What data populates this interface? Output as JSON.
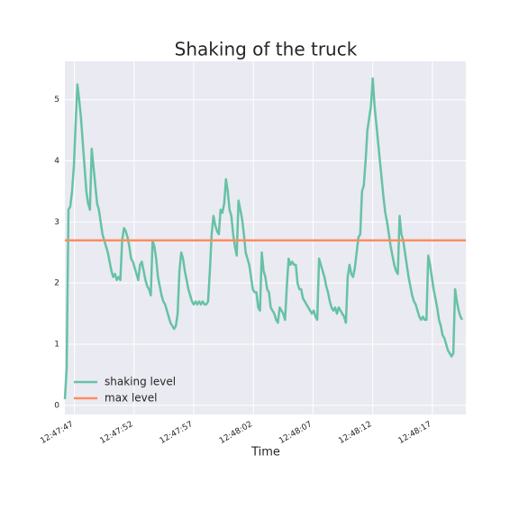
{
  "chart_data": {
    "type": "line",
    "title": "Shaking of the truck",
    "xlabel": "Time",
    "x": [
      "12:47:46.20",
      "12:47:46.35",
      "12:47:46.50",
      "12:47:46.65",
      "12:47:46.80",
      "12:47:46.95",
      "12:47:47.10",
      "12:47:47.25",
      "12:47:47.40",
      "12:47:47.55",
      "12:47:47.70",
      "12:47:47.85",
      "12:47:48.00",
      "12:47:48.15",
      "12:47:48.30",
      "12:47:48.45",
      "12:47:48.60",
      "12:47:48.75",
      "12:47:48.90",
      "12:47:49.05",
      "12:47:49.20",
      "12:47:49.35",
      "12:47:49.50",
      "12:47:49.65",
      "12:47:49.80",
      "12:47:49.95",
      "12:47:50.10",
      "12:47:50.25",
      "12:47:50.40",
      "12:47:50.55",
      "12:47:50.70",
      "12:47:50.85",
      "12:47:51.00",
      "12:47:51.15",
      "12:47:51.30",
      "12:47:51.45",
      "12:47:51.60",
      "12:47:51.75",
      "12:47:51.90",
      "12:47:52.05",
      "12:47:52.20",
      "12:47:52.35",
      "12:47:52.50",
      "12:47:52.65",
      "12:47:52.80",
      "12:47:52.95",
      "12:47:53.10",
      "12:47:53.25",
      "12:47:53.40",
      "12:47:53.55",
      "12:47:53.70",
      "12:47:53.85",
      "12:47:54.00",
      "12:47:54.15",
      "12:47:54.30",
      "12:47:54.45",
      "12:47:54.60",
      "12:47:54.75",
      "12:47:54.90",
      "12:47:55.05",
      "12:47:55.20",
      "12:47:55.35",
      "12:47:55.50",
      "12:47:55.65",
      "12:47:55.80",
      "12:47:55.95",
      "12:47:56.10",
      "12:47:56.25",
      "12:47:56.40",
      "12:47:56.55",
      "12:47:56.70",
      "12:47:56.85",
      "12:47:57.00",
      "12:47:57.15",
      "12:47:57.30",
      "12:47:57.45",
      "12:47:57.60",
      "12:47:57.75",
      "12:47:57.90",
      "12:47:58.05",
      "12:47:58.20",
      "12:47:58.35",
      "12:47:58.50",
      "12:47:58.65",
      "12:47:58.80",
      "12:47:58.95",
      "12:47:59.10",
      "12:47:59.25",
      "12:47:59.40",
      "12:47:59.55",
      "12:47:59.70",
      "12:47:59.85",
      "12:48:00.00",
      "12:48:00.15",
      "12:48:00.30",
      "12:48:00.45",
      "12:48:00.60",
      "12:48:00.75",
      "12:48:00.90",
      "12:48:01.05",
      "12:48:01.20",
      "12:48:01.35",
      "12:48:01.50",
      "12:48:01.65",
      "12:48:01.80",
      "12:48:01.95",
      "12:48:02.10",
      "12:48:02.25",
      "12:48:02.40",
      "12:48:02.55",
      "12:48:02.70",
      "12:48:02.85",
      "12:48:03.00",
      "12:48:03.15",
      "12:48:03.30",
      "12:48:03.45",
      "12:48:03.60",
      "12:48:03.75",
      "12:48:03.90",
      "12:48:04.05",
      "12:48:04.20",
      "12:48:04.35",
      "12:48:04.50",
      "12:48:04.65",
      "12:48:04.80",
      "12:48:04.95",
      "12:48:05.10",
      "12:48:05.25",
      "12:48:05.40",
      "12:48:05.55",
      "12:48:05.70",
      "12:48:05.85",
      "12:48:06.00",
      "12:48:06.15",
      "12:48:06.30",
      "12:48:06.45",
      "12:48:06.60",
      "12:48:06.75",
      "12:48:06.90",
      "12:48:07.05",
      "12:48:07.20",
      "12:48:07.35",
      "12:48:07.50",
      "12:48:07.65",
      "12:48:07.80",
      "12:48:07.95",
      "12:48:08.10",
      "12:48:08.25",
      "12:48:08.40",
      "12:48:08.55",
      "12:48:08.70",
      "12:48:08.85",
      "12:48:09.00",
      "12:48:09.15",
      "12:48:09.30",
      "12:48:09.45",
      "12:48:09.60",
      "12:48:09.75",
      "12:48:09.90",
      "12:48:10.05",
      "12:48:10.20",
      "12:48:10.35",
      "12:48:10.50",
      "12:48:10.65",
      "12:48:10.80",
      "12:48:10.95",
      "12:48:11.10",
      "12:48:11.25",
      "12:48:11.40",
      "12:48:11.55",
      "12:48:11.70",
      "12:48:11.85",
      "12:48:12.00",
      "12:48:12.15",
      "12:48:12.30",
      "12:48:12.45",
      "12:48:12.60",
      "12:48:12.75",
      "12:48:12.90",
      "12:48:13.05",
      "12:48:13.20",
      "12:48:13.35",
      "12:48:13.50",
      "12:48:13.65",
      "12:48:13.80",
      "12:48:13.95",
      "12:48:14.10",
      "12:48:14.25",
      "12:48:14.40",
      "12:48:14.55",
      "12:48:14.70",
      "12:48:14.85",
      "12:48:15.00",
      "12:48:15.15",
      "12:48:15.30",
      "12:48:15.45",
      "12:48:15.60",
      "12:48:15.75",
      "12:48:15.90",
      "12:48:16.05",
      "12:48:16.20",
      "12:48:16.35",
      "12:48:16.50",
      "12:48:16.65",
      "12:48:16.80",
      "12:48:16.95",
      "12:48:17.10",
      "12:48:17.25",
      "12:48:17.40",
      "12:48:17.55",
      "12:48:17.70",
      "12:48:17.85",
      "12:48:18.00",
      "12:48:18.15",
      "12:48:18.30",
      "12:48:18.45",
      "12:48:18.60",
      "12:48:18.75",
      "12:48:18.90",
      "12:48:19.05",
      "12:48:19.20",
      "12:48:19.35",
      "12:48:19.50"
    ],
    "series": [
      {
        "name": "shaking level",
        "color": "#66c2a5",
        "values": [
          0.1,
          0.6,
          3.2,
          3.25,
          3.5,
          3.9,
          4.6,
          5.25,
          5.0,
          4.7,
          4.3,
          3.9,
          3.5,
          3.3,
          3.2,
          4.2,
          3.9,
          3.6,
          3.3,
          3.2,
          3.0,
          2.8,
          2.7,
          2.6,
          2.5,
          2.35,
          2.2,
          2.1,
          2.15,
          2.05,
          2.1,
          2.05,
          2.7,
          2.9,
          2.85,
          2.75,
          2.6,
          2.4,
          2.35,
          2.25,
          2.15,
          2.05,
          2.3,
          2.35,
          2.2,
          2.05,
          1.95,
          1.9,
          1.8,
          2.7,
          2.6,
          2.4,
          2.1,
          1.95,
          1.8,
          1.7,
          1.65,
          1.55,
          1.45,
          1.35,
          1.3,
          1.25,
          1.3,
          1.5,
          2.2,
          2.5,
          2.4,
          2.2,
          2.05,
          1.9,
          1.8,
          1.7,
          1.65,
          1.7,
          1.65,
          1.7,
          1.65,
          1.7,
          1.65,
          1.65,
          1.7,
          2.2,
          2.8,
          3.1,
          2.95,
          2.85,
          2.8,
          3.2,
          3.15,
          3.3,
          3.7,
          3.5,
          3.2,
          3.1,
          2.8,
          2.6,
          2.45,
          3.35,
          3.2,
          3.05,
          2.8,
          2.5,
          2.4,
          2.3,
          2.1,
          1.9,
          1.85,
          1.85,
          1.6,
          1.55,
          2.5,
          2.2,
          2.1,
          1.9,
          1.85,
          1.6,
          1.55,
          1.5,
          1.4,
          1.35,
          1.6,
          1.55,
          1.5,
          1.4,
          1.95,
          2.4,
          2.3,
          2.35,
          2.3,
          2.3,
          2.0,
          1.9,
          1.9,
          1.75,
          1.7,
          1.65,
          1.6,
          1.55,
          1.5,
          1.55,
          1.45,
          1.4,
          2.4,
          2.3,
          2.2,
          2.1,
          1.95,
          1.85,
          1.7,
          1.6,
          1.55,
          1.6,
          1.5,
          1.6,
          1.55,
          1.5,
          1.45,
          1.35,
          2.1,
          2.3,
          2.15,
          2.1,
          2.25,
          2.5,
          2.75,
          2.8,
          3.5,
          3.6,
          4.0,
          4.5,
          4.7,
          4.9,
          5.35,
          4.9,
          4.6,
          4.3,
          4.0,
          3.7,
          3.4,
          3.15,
          3.0,
          2.8,
          2.6,
          2.45,
          2.3,
          2.2,
          2.15,
          3.1,
          2.8,
          2.7,
          2.5,
          2.3,
          2.1,
          1.95,
          1.8,
          1.7,
          1.65,
          1.55,
          1.45,
          1.4,
          1.45,
          1.4,
          1.4,
          2.45,
          2.3,
          2.1,
          1.9,
          1.75,
          1.6,
          1.4,
          1.3,
          1.15,
          1.1,
          1.0,
          0.9,
          0.85,
          0.8,
          0.85,
          1.9,
          1.7,
          1.55,
          1.45,
          1.4
        ]
      }
    ],
    "reference_lines": [
      {
        "name": "max level",
        "color": "#fc8d62",
        "value": 2.7
      }
    ],
    "xlim": [
      "12:47:46.20",
      "12:48:19.80"
    ],
    "xticks": [
      "12:47:47",
      "12:47:52",
      "12:47:57",
      "12:48:02",
      "12:48:07",
      "12:48:12",
      "12:48:17"
    ],
    "ylim": [
      -0.15,
      5.63
    ],
    "yticks": [
      0,
      1,
      2,
      3,
      4,
      5
    ],
    "grid": true,
    "legend": "lower left"
  }
}
